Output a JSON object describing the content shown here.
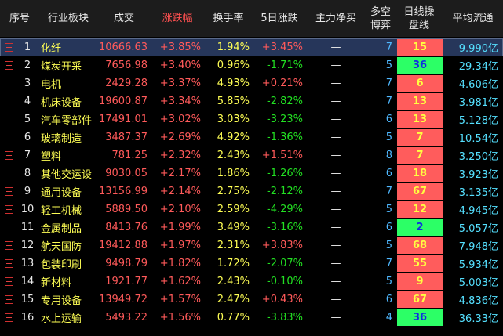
{
  "table": {
    "headers": [
      "序号",
      "行业板块",
      "成交",
      "涨跌幅",
      "换手率",
      "5日涨跌",
      "主力净买",
      "多空博弈",
      "日线操盘线",
      "平均流通"
    ],
    "selected_row": 0,
    "rows": [
      {
        "cells": [
          "1",
          "化纤",
          "10666.63",
          "+3.85%",
          "1.94%",
          "+3.45%",
          "—",
          "7",
          "15",
          "9.990亿"
        ],
        "expandable": true,
        "signal_color": "red"
      },
      {
        "cells": [
          "2",
          "煤炭开采",
          "7656.98",
          "+3.40%",
          "0.96%",
          "-1.71%",
          "—",
          "5",
          "36",
          "29.34亿"
        ],
        "expandable": true,
        "signal_color": "green"
      },
      {
        "cells": [
          "3",
          "电机",
          "2429.28",
          "+3.37%",
          "4.93%",
          "+0.21%",
          "—",
          "7",
          "6",
          "4.606亿"
        ],
        "expandable": false,
        "signal_color": "red"
      },
      {
        "cells": [
          "4",
          "机床设备",
          "19600.87",
          "+3.34%",
          "5.85%",
          "-2.82%",
          "—",
          "7",
          "13",
          "3.981亿"
        ],
        "expandable": false,
        "signal_color": "red"
      },
      {
        "cells": [
          "5",
          "汽车零部件",
          "17491.01",
          "+3.02%",
          "3.03%",
          "-3.23%",
          "—",
          "6",
          "13",
          "5.128亿"
        ],
        "expandable": false,
        "signal_color": "red"
      },
      {
        "cells": [
          "6",
          "玻璃制造",
          "3487.37",
          "+2.69%",
          "4.92%",
          "-1.36%",
          "—",
          "5",
          "7",
          "10.54亿"
        ],
        "expandable": false,
        "signal_color": "red"
      },
      {
        "cells": [
          "7",
          "塑料",
          "781.25",
          "+2.32%",
          "2.43%",
          "+1.51%",
          "—",
          "8",
          "7",
          "3.250亿"
        ],
        "expandable": true,
        "signal_color": "red"
      },
      {
        "cells": [
          "8",
          "其他交运设",
          "9030.05",
          "+2.17%",
          "1.86%",
          "-1.26%",
          "—",
          "6",
          "18",
          "3.923亿"
        ],
        "expandable": false,
        "signal_color": "red"
      },
      {
        "cells": [
          "9",
          "通用设备",
          "13156.99",
          "+2.14%",
          "2.75%",
          "-2.12%",
          "—",
          "7",
          "67",
          "3.135亿"
        ],
        "expandable": true,
        "signal_color": "red"
      },
      {
        "cells": [
          "10",
          "轻工机械",
          "5889.50",
          "+2.10%",
          "2.59%",
          "-4.29%",
          "—",
          "5",
          "12",
          "4.945亿"
        ],
        "expandable": true,
        "signal_color": "red"
      },
      {
        "cells": [
          "11",
          "金属制品",
          "8413.76",
          "+1.99%",
          "3.49%",
          "-3.16%",
          "—",
          "6",
          "2",
          "5.057亿"
        ],
        "expandable": false,
        "signal_color": "green"
      },
      {
        "cells": [
          "12",
          "航天国防",
          "19412.88",
          "+1.97%",
          "2.31%",
          "+3.83%",
          "—",
          "5",
          "68",
          "7.948亿"
        ],
        "expandable": true,
        "signal_color": "red"
      },
      {
        "cells": [
          "13",
          "包装印刷",
          "9498.79",
          "+1.82%",
          "1.72%",
          "-2.07%",
          "—",
          "7",
          "55",
          "5.934亿"
        ],
        "expandable": true,
        "signal_color": "red"
      },
      {
        "cells": [
          "14",
          "新材料",
          "1921.77",
          "+1.62%",
          "2.43%",
          "-0.10%",
          "—",
          "5",
          "9",
          "5.003亿"
        ],
        "expandable": true,
        "signal_color": "red"
      },
      {
        "cells": [
          "15",
          "专用设备",
          "13949.72",
          "+1.57%",
          "2.47%",
          "+0.43%",
          "—",
          "6",
          "67",
          "4.836亿"
        ],
        "expandable": true,
        "signal_color": "red"
      },
      {
        "cells": [
          "16",
          "水上运输",
          "5493.22",
          "+1.56%",
          "0.77%",
          "-3.83%",
          "—",
          "4",
          "36",
          "36.33亿"
        ],
        "expandable": true,
        "signal_color": "green"
      }
    ]
  }
}
